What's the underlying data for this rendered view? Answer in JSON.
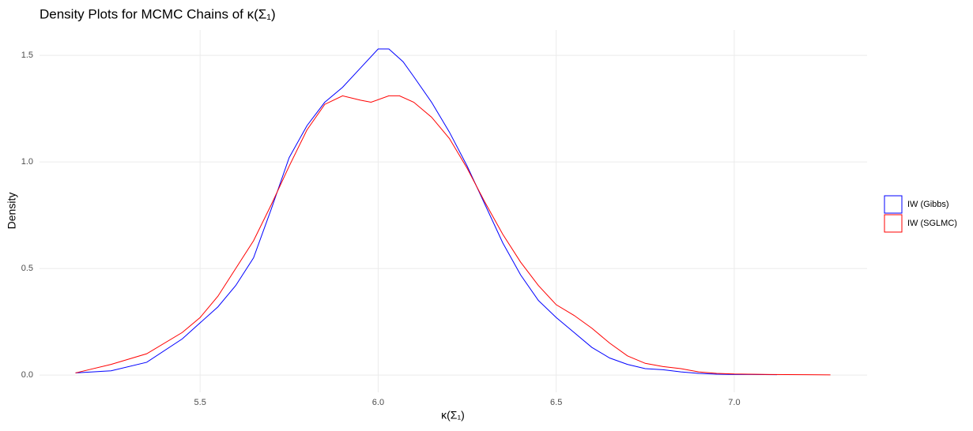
{
  "chart_data": {
    "type": "line",
    "title": "Density Plots for MCMC Chains of κ(Σ₁)",
    "x_label": "κ(Σ₁)",
    "y_label": "Density",
    "xlim": [
      5.049,
      7.373
    ],
    "ylim": [
      -0.081,
      1.619
    ],
    "xticks": [
      5.5,
      6.0,
      6.5,
      7.0
    ],
    "yticks": [
      0.0,
      0.5,
      1.0,
      1.5
    ],
    "grid": true,
    "legend_position": "right",
    "series": [
      {
        "name": "IW (Gibbs)",
        "color": "#0000ff",
        "x": [
          5.15,
          5.25,
          5.35,
          5.45,
          5.55,
          5.6,
          5.65,
          5.7,
          5.75,
          5.8,
          5.85,
          5.9,
          5.95,
          6.0,
          6.03,
          6.07,
          6.1,
          6.15,
          6.2,
          6.25,
          6.3,
          6.35,
          6.4,
          6.45,
          6.5,
          6.55,
          6.6,
          6.65,
          6.7,
          6.75,
          6.8,
          6.85,
          6.9,
          6.95,
          7.0,
          7.05,
          7.12
        ],
        "values": [
          0.01,
          0.02,
          0.06,
          0.17,
          0.32,
          0.42,
          0.55,
          0.78,
          1.02,
          1.17,
          1.28,
          1.35,
          1.44,
          1.53,
          1.53,
          1.47,
          1.4,
          1.28,
          1.14,
          0.98,
          0.8,
          0.62,
          0.47,
          0.35,
          0.27,
          0.2,
          0.13,
          0.08,
          0.05,
          0.03,
          0.025,
          0.015,
          0.008,
          0.004,
          0.003,
          0.003,
          0.002
        ]
      },
      {
        "name": "IW (SGLMC)",
        "color": "#ff0000",
        "x": [
          5.15,
          5.25,
          5.35,
          5.45,
          5.5,
          5.55,
          5.6,
          5.65,
          5.7,
          5.75,
          5.8,
          5.85,
          5.9,
          5.95,
          5.98,
          6.03,
          6.06,
          6.1,
          6.15,
          6.2,
          6.25,
          6.3,
          6.35,
          6.4,
          6.45,
          6.5,
          6.55,
          6.6,
          6.65,
          6.7,
          6.75,
          6.8,
          6.85,
          6.9,
          6.95,
          7.0,
          7.1,
          7.2,
          7.27
        ],
        "values": [
          0.01,
          0.05,
          0.1,
          0.2,
          0.27,
          0.37,
          0.5,
          0.63,
          0.8,
          0.98,
          1.15,
          1.27,
          1.31,
          1.29,
          1.28,
          1.31,
          1.31,
          1.28,
          1.21,
          1.11,
          0.97,
          0.81,
          0.66,
          0.53,
          0.42,
          0.33,
          0.28,
          0.22,
          0.15,
          0.09,
          0.055,
          0.04,
          0.03,
          0.015,
          0.008,
          0.005,
          0.003,
          0.002,
          0.001
        ]
      }
    ]
  }
}
